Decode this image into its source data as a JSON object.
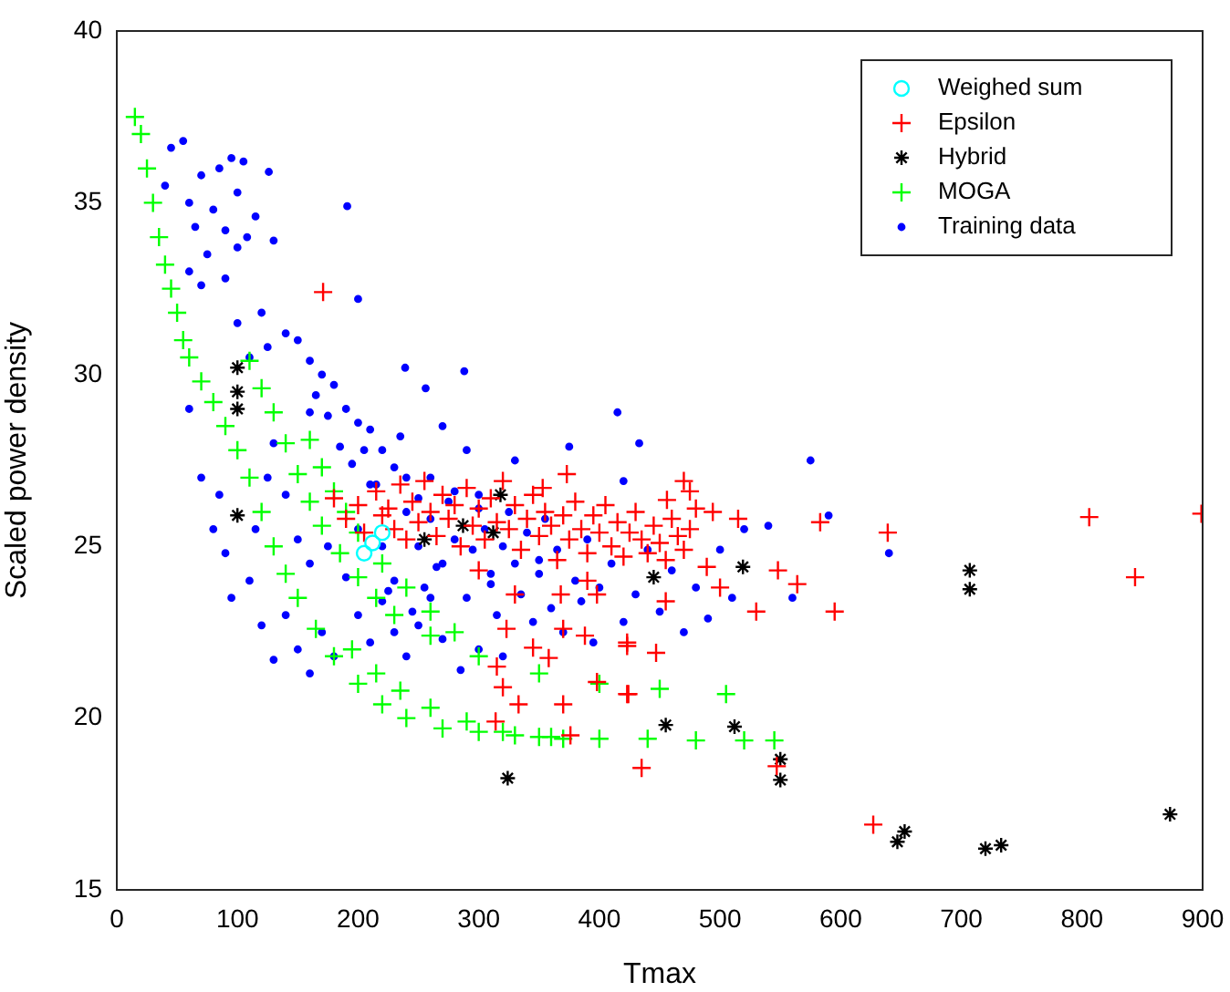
{
  "chart_data": {
    "type": "scatter",
    "xlabel": "Tmax",
    "ylabel": "Scaled power density",
    "xlim": [
      0,
      900
    ],
    "xticks": [
      0,
      100,
      200,
      300,
      400,
      500,
      600,
      700,
      800,
      900
    ],
    "ylim": [
      15,
      40
    ],
    "yticks": [
      15,
      20,
      25,
      30,
      35,
      40
    ],
    "legend": "top right",
    "grid": false,
    "series": [
      {
        "name": "Weighed sum",
        "color": "#00ffff",
        "marker": "circle",
        "x": [
          205,
          212,
          220
        ],
        "values": [
          24.8,
          25.1,
          25.4
        ]
      },
      {
        "name": "Epsilon",
        "color": "#ff0000",
        "marker": "cross",
        "x": [
          171,
          475,
          456,
          494,
          515,
          583,
          639,
          806,
          899,
          844,
          548,
          564,
          530,
          595,
          489,
          500,
          455,
          423,
          447,
          423,
          435,
          627,
          547,
          373,
          353,
          323,
          345,
          358,
          315,
          320,
          333,
          370,
          314,
          376,
          388,
          398,
          423,
          424,
          368,
          398,
          370,
          180,
          190,
          200,
          205,
          215,
          220,
          225,
          230,
          235,
          240,
          245,
          250,
          255,
          260,
          265,
          270,
          275,
          280,
          285,
          290,
          295,
          300,
          305,
          310,
          315,
          320,
          325,
          330,
          335,
          340,
          345,
          350,
          355,
          360,
          365,
          370,
          375,
          380,
          385,
          390,
          395,
          400,
          405,
          410,
          415,
          420,
          425,
          430,
          435,
          440,
          445,
          450,
          455,
          460,
          465,
          470,
          475,
          480,
          470,
          300,
          330,
          390
        ],
        "values": [
          32.4,
          26.6,
          26.35,
          26,
          25.8,
          25.7,
          25.4,
          25.85,
          25.95,
          24.1,
          24.3,
          23.9,
          23.1,
          23.1,
          24.4,
          23.8,
          23.4,
          22.2,
          21.9,
          20.7,
          18.55,
          16.9,
          18.6,
          27.1,
          26.7,
          22.6,
          22.05,
          21.75,
          21.5,
          20.9,
          20.4,
          20.4,
          19.9,
          19.5,
          22.4,
          23.6,
          22.1,
          20.7,
          23.6,
          21.05,
          22.6,
          26.4,
          25.8,
          26.2,
          25.4,
          26.6,
          25.9,
          26.1,
          25.5,
          26.8,
          25.2,
          26.3,
          25.7,
          26.9,
          26,
          25.3,
          26.5,
          25.8,
          26.2,
          25,
          26.7,
          25.6,
          26.1,
          25.2,
          26.4,
          25.7,
          26.9,
          25.5,
          26.2,
          24.9,
          25.8,
          26.5,
          25.3,
          26,
          25.6,
          24.6,
          25.9,
          25.2,
          26.3,
          25.5,
          24.8,
          25.9,
          25.4,
          26.2,
          25,
          25.7,
          24.7,
          25.4,
          26,
          25.2,
          24.8,
          25.6,
          25.1,
          24.6,
          25.8,
          25.3,
          24.9,
          25.5,
          26.1,
          26.9,
          24.3,
          23.6,
          24
        ]
      },
      {
        "name": "Hybrid",
        "color": "#000000",
        "x": [
          100,
          100,
          100,
          100,
          318,
          312,
          255,
          287,
          445,
          324,
          519,
          550,
          550,
          707,
          707,
          647,
          653,
          720,
          733,
          873,
          455,
          512
        ],
        "values": [
          30.2,
          29.5,
          29,
          25.9,
          26.5,
          25.4,
          25.2,
          25.6,
          24.1,
          18.25,
          24.4,
          18.8,
          18.2,
          24.3,
          23.75,
          16.4,
          16.7,
          16.2,
          16.3,
          17.2,
          19.8,
          19.75
        ]
      },
      {
        "name": "MOGA",
        "color": "#00ff00",
        "marker": "cross",
        "x": [
          15,
          20,
          25,
          30,
          35,
          40,
          45,
          50,
          55,
          60,
          70,
          80,
          90,
          100,
          110,
          120,
          130,
          140,
          150,
          165,
          180,
          200,
          220,
          240,
          270,
          300,
          330,
          360,
          400,
          440,
          480,
          520,
          545,
          110,
          120,
          130,
          140,
          150,
          160,
          170,
          185,
          200,
          215,
          230,
          260,
          300,
          350,
          400,
          450,
          505,
          160,
          170,
          180,
          190,
          200,
          220,
          240,
          260,
          280,
          195,
          215,
          235,
          260,
          290,
          320,
          350,
          370
        ],
        "values": [
          37.5,
          37,
          36,
          35,
          34,
          33.2,
          32.5,
          31.8,
          31,
          30.5,
          29.8,
          29.2,
          28.5,
          27.8,
          27,
          26,
          25,
          24.2,
          23.5,
          22.6,
          21.8,
          21,
          20.4,
          20,
          19.7,
          19.6,
          19.5,
          19.45,
          19.4,
          19.4,
          19.35,
          19.35,
          19.35,
          30.4,
          29.6,
          28.9,
          28,
          27.1,
          26.3,
          25.6,
          24.8,
          24.1,
          23.5,
          23,
          22.4,
          21.8,
          21.3,
          21,
          20.85,
          20.7,
          28.1,
          27.3,
          26.6,
          26,
          25.4,
          24.5,
          23.8,
          23.1,
          22.5,
          22,
          21.3,
          20.8,
          20.3,
          19.9,
          19.6,
          19.45,
          19.4
        ]
      },
      {
        "name": "Training data",
        "color": "#0000ff",
        "marker": "circle",
        "x": [
          40,
          45,
          55,
          60,
          65,
          70,
          75,
          80,
          85,
          90,
          95,
          100,
          105,
          108,
          60,
          70,
          90,
          100,
          115,
          120,
          130,
          100,
          110,
          125,
          140,
          150,
          160,
          170,
          165,
          180,
          190,
          200,
          210,
          175,
          195,
          220,
          230,
          240,
          185,
          205,
          215,
          250,
          260,
          280,
          300,
          200,
          191,
          126,
          60,
          70,
          80,
          90,
          95,
          85,
          110,
          120,
          130,
          140,
          150,
          160,
          170,
          180,
          160,
          175,
          190,
          200,
          210,
          220,
          230,
          240,
          250,
          260,
          270,
          285,
          300,
          320,
          140,
          150,
          125,
          130,
          115,
          200,
          210,
          220,
          230,
          240,
          250,
          255,
          260,
          270,
          275,
          280,
          290,
          295,
          300,
          305,
          310,
          315,
          320,
          325,
          330,
          335,
          340,
          345,
          350,
          355,
          360,
          365,
          370,
          380,
          385,
          390,
          395,
          400,
          410,
          420,
          430,
          440,
          450,
          460,
          470,
          480,
          490,
          500,
          510,
          520,
          540,
          560,
          575,
          590,
          640,
          375,
          420,
          330,
          290,
          235,
          270,
          160,
          415,
          433,
          239,
          256,
          288,
          350,
          310,
          265,
          245,
          225
        ],
        "values": [
          35.5,
          36.6,
          36.8,
          35,
          34.3,
          35.8,
          33.5,
          34.8,
          36,
          34.2,
          36.3,
          35.3,
          36.2,
          34,
          33,
          32.6,
          32.8,
          33.7,
          34.6,
          31.8,
          33.9,
          31.5,
          30.5,
          30.8,
          31.2,
          31,
          30.4,
          30,
          29.4,
          29.7,
          29,
          28.6,
          28.4,
          28.8,
          27.4,
          27.8,
          27.3,
          27,
          27.9,
          27.8,
          26.8,
          26.4,
          27,
          26.6,
          26.1,
          32.2,
          34.9,
          35.9,
          29,
          27,
          25.5,
          24.8,
          23.5,
          26.5,
          24,
          22.7,
          21.7,
          23,
          22,
          21.3,
          22.5,
          21.8,
          24.5,
          25,
          24.1,
          23,
          22.2,
          23.4,
          22.5,
          21.8,
          22.7,
          23.5,
          22.3,
          21.4,
          22,
          21.8,
          26.5,
          25.2,
          27,
          28,
          25.5,
          25.5,
          26.8,
          25,
          24,
          26,
          25,
          23.8,
          25.8,
          24.5,
          26.3,
          25.2,
          23.5,
          24.9,
          26.5,
          25.5,
          24.2,
          23,
          25,
          26,
          24.5,
          23.6,
          25.4,
          22.8,
          24.2,
          25.8,
          23.2,
          24.9,
          22.5,
          24,
          23.4,
          25.2,
          22.2,
          23.8,
          24.5,
          22.8,
          23.6,
          24.9,
          23.1,
          24.3,
          22.5,
          23.8,
          22.9,
          24.9,
          23.5,
          25.5,
          25.6,
          23.5,
          27.5,
          25.9,
          24.8,
          27.9,
          26.9,
          27.5,
          27.8,
          28.2,
          28.5,
          28.9,
          28.9,
          28,
          30.2,
          29.6,
          30.1,
          24.6,
          23.9,
          24.4,
          23.1,
          23.7
        ]
      }
    ]
  }
}
